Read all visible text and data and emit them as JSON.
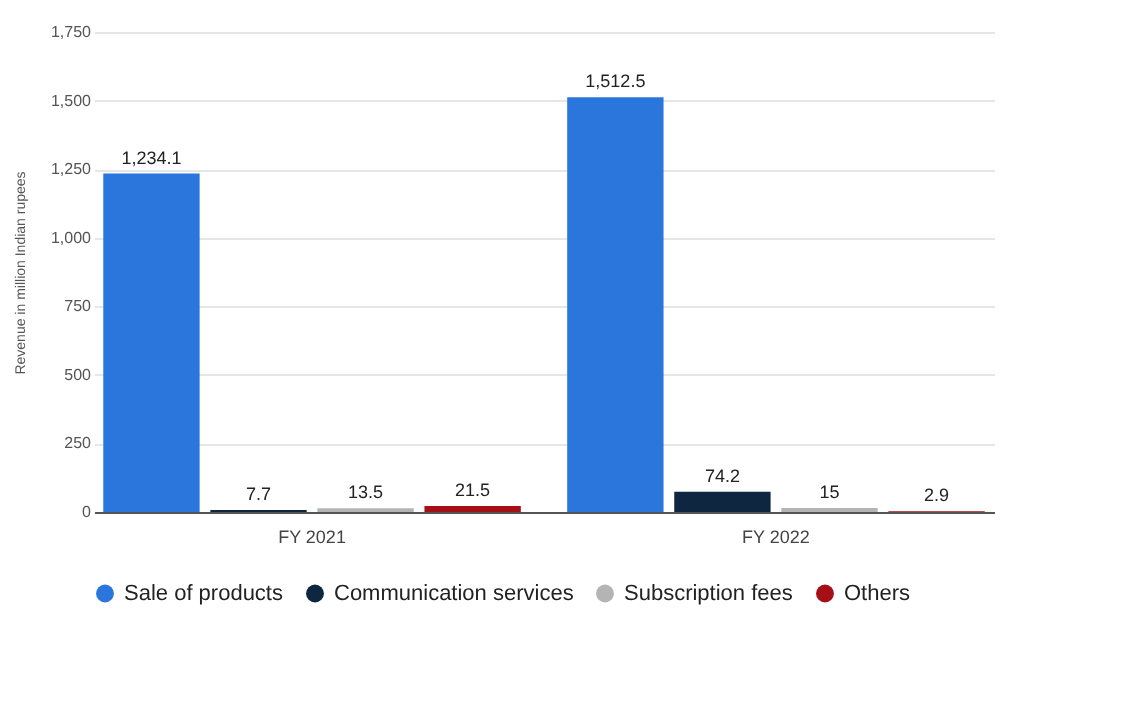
{
  "chart_data": {
    "type": "bar",
    "ylabel": "Revenue in million Indian rupees",
    "categories": [
      "FY 2021",
      "FY 2022"
    ],
    "series": [
      {
        "name": "Sale of products",
        "color": "#2a76dd",
        "values": [
          1234.1,
          1512.5
        ],
        "value_labels": [
          "1,234.1",
          "1,512.5"
        ]
      },
      {
        "name": "Communication services",
        "color": "#0f2640",
        "values": [
          7.7,
          74.2
        ],
        "value_labels": [
          "7.7",
          "74.2"
        ]
      },
      {
        "name": "Subscription fees",
        "color": "#b4b4b4",
        "values": [
          13.5,
          15
        ],
        "value_labels": [
          "13.5",
          "15"
        ]
      },
      {
        "name": "Others",
        "color": "#a50f15",
        "values": [
          21.5,
          2.9
        ],
        "value_labels": [
          "21.5",
          "2.9"
        ]
      }
    ],
    "ylim": [
      0,
      1750
    ],
    "yticks": [
      0,
      250,
      500,
      750,
      {
        "value": 1000,
        "label": "1,000"
      },
      {
        "value": 1250,
        "label": "1,250"
      },
      {
        "value": 1500,
        "label": "1,500"
      },
      {
        "value": 1750,
        "label": "1,750"
      }
    ],
    "grid": "y",
    "legend": "bottom"
  }
}
